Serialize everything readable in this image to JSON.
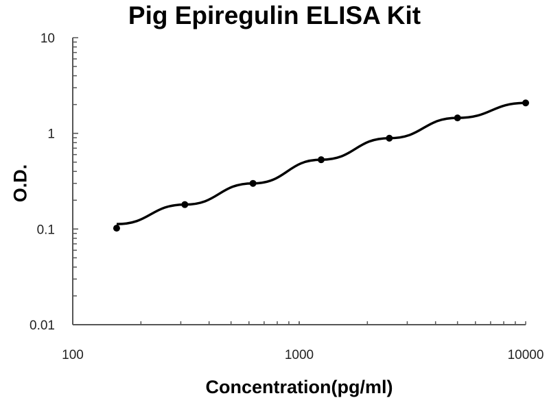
{
  "chart_data": {
    "type": "line",
    "title": "Pig Epiregulin ELISA Kit",
    "xlabel": "Concentration(pg/ml)",
    "ylabel": "O.D.",
    "xscale": "log",
    "yscale": "log",
    "xlim": [
      100,
      10000
    ],
    "ylim": [
      0.01,
      10
    ],
    "xticks": [
      "100",
      "1000",
      "10000"
    ],
    "yticks": [
      "0.01",
      "0.1",
      "1",
      "10"
    ],
    "grid": false,
    "legend": "none",
    "color": "#000000",
    "series": [
      {
        "x": [
          156.25,
          312.5,
          625,
          1250,
          2500,
          5000,
          10000
        ],
        "y": [
          0.102,
          0.18,
          0.3,
          0.53,
          0.89,
          1.45,
          2.08
        ]
      }
    ]
  }
}
